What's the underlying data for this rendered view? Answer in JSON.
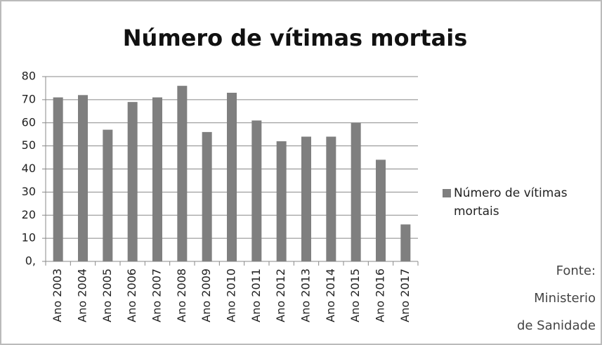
{
  "chart_data": {
    "type": "bar",
    "title": "Número de vítimas mortais",
    "categories": [
      "Ano 2003",
      "Ano 2004",
      "Ano 2005",
      "Ano 2006",
      "Ano 2007",
      "Ano 2008",
      "Ano 2009",
      "Ano 2010",
      "Ano 2011",
      "Ano 2012",
      "Ano 2013",
      "Ano 2014",
      "Ano 2015",
      "Ano 2016",
      "Ano 2017"
    ],
    "series": [
      {
        "name": "Número de vítimas mortais",
        "color": "#7f7f7f",
        "values": [
          71,
          72,
          57,
          69,
          71,
          76,
          56,
          73,
          61,
          52,
          54,
          54,
          60,
          44,
          16
        ]
      }
    ],
    "ylim": [
      0,
      80
    ],
    "yticks": [
      {
        "value": 0,
        "label": "0,"
      },
      10,
      20,
      30,
      40,
      50,
      60,
      70,
      80
    ],
    "grid": true,
    "legend": "right",
    "annotation": [
      "Fonte:",
      "Ministerio",
      "de Sanidade"
    ]
  }
}
